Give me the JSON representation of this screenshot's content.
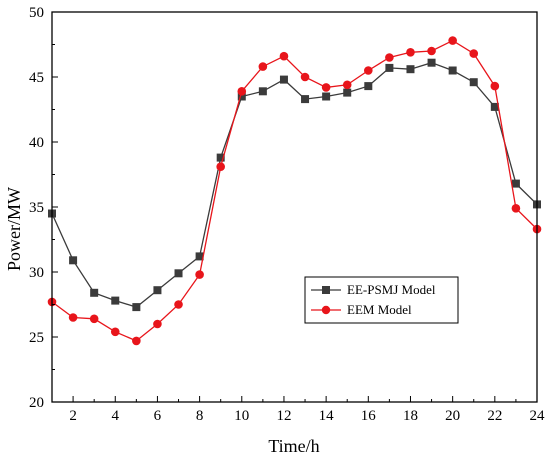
{
  "chart_data": {
    "type": "line",
    "xlabel": "Time/h",
    "ylabel": "Power/MW",
    "xlim": [
      1,
      24
    ],
    "ylim": [
      20,
      50
    ],
    "xticks": [
      2,
      4,
      6,
      8,
      10,
      12,
      14,
      16,
      18,
      20,
      22,
      24
    ],
    "yticks": [
      20,
      25,
      30,
      35,
      40,
      45,
      50
    ],
    "grid": false,
    "legend_position": "bottom-right",
    "x": [
      1,
      2,
      3,
      4,
      5,
      6,
      7,
      8,
      9,
      10,
      11,
      12,
      13,
      14,
      15,
      16,
      17,
      18,
      19,
      20,
      21,
      22,
      23,
      24
    ],
    "series": [
      {
        "name": "EE-PSMJ Model",
        "color": "#3b3b3b",
        "marker": "square",
        "values": [
          34.5,
          30.9,
          28.4,
          27.8,
          27.3,
          28.6,
          29.9,
          31.2,
          38.8,
          43.5,
          43.9,
          44.8,
          43.3,
          43.5,
          43.8,
          44.3,
          45.7,
          45.6,
          46.1,
          45.5,
          44.6,
          42.7,
          36.8,
          35.2
        ]
      },
      {
        "name": "EEM Model",
        "color": "#e8151b",
        "marker": "circle",
        "values": [
          27.7,
          26.5,
          26.4,
          25.4,
          24.7,
          26.0,
          27.5,
          29.8,
          38.1,
          43.9,
          45.8,
          46.6,
          45.0,
          44.2,
          44.4,
          45.5,
          46.5,
          46.9,
          47.0,
          47.8,
          46.8,
          44.3,
          34.9,
          33.3
        ]
      }
    ]
  }
}
